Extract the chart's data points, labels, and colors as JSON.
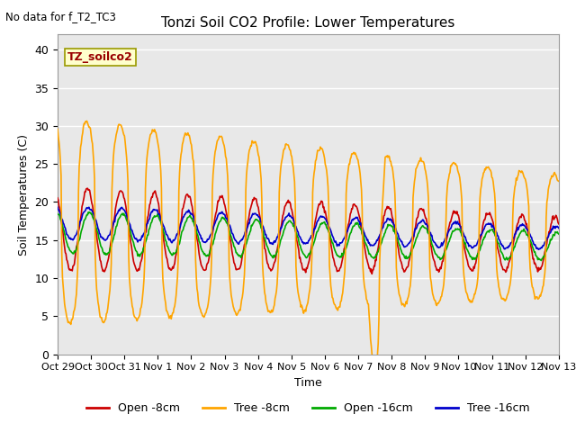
{
  "title": "Tonzi Soil CO2 Profile: Lower Temperatures",
  "subtitle": "No data for f_T2_TC3",
  "xlabel": "Time",
  "ylabel": "Soil Temperatures (C)",
  "annotation": "TZ_soilco2",
  "xtick_labels": [
    "Oct 29",
    "Oct 30",
    "Oct 31",
    "Nov 1",
    "Nov 2",
    "Nov 3",
    "Nov 4",
    "Nov 5",
    "Nov 6",
    "Nov 7",
    "Nov 8",
    "Nov 9",
    "Nov 10",
    "Nov 11",
    "Nov 12",
    "Nov 13"
  ],
  "ylim": [
    0,
    42
  ],
  "yticks": [
    0,
    5,
    10,
    15,
    20,
    25,
    30,
    35,
    40
  ],
  "bg_color": "#e8e8e8",
  "fig_color": "#ffffff",
  "colors": {
    "open8": "#cc0000",
    "tree8": "#ffa500",
    "open16": "#00aa00",
    "tree16": "#0000cc"
  },
  "legend_labels": [
    "Open -8cm",
    "Tree -8cm",
    "Open -16cm",
    "Tree -16cm"
  ]
}
